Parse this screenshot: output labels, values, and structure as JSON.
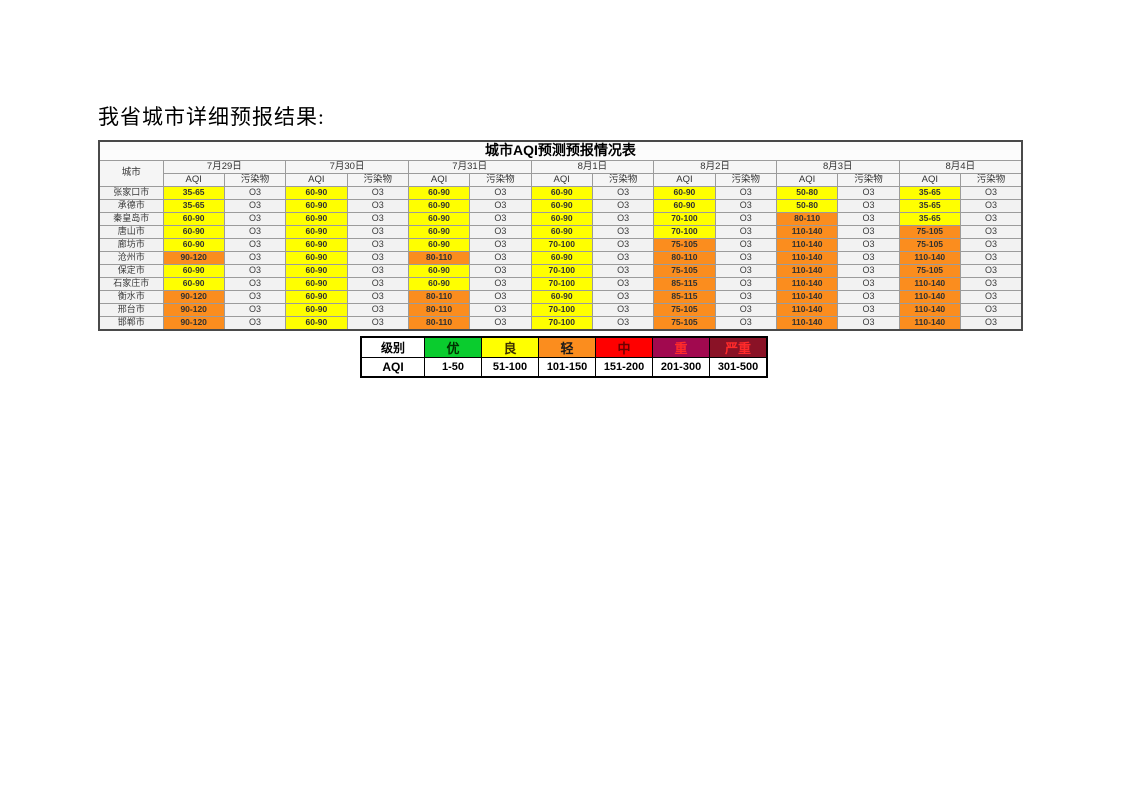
{
  "page": {
    "heading": "我省城市详细预报结果:"
  },
  "colors": {
    "yellow": "#ffff00",
    "orange": "#fb8d1e",
    "green": "#0acc2e",
    "red": "#ff0000",
    "purple": "#a1094f",
    "maroon": "#8a1226"
  },
  "table": {
    "title": "城市AQI预测预报情况表",
    "city_header": "城市",
    "aqi_header": "AQI",
    "pollutant_header": "污染物",
    "dates": [
      "7月29日",
      "7月30日",
      "7月31日",
      "8月1日",
      "8月2日",
      "8月3日",
      "8月4日"
    ],
    "rows": [
      {
        "city": "张家口市",
        "cells": [
          {
            "aqi": "35-65",
            "pollutant": "O3",
            "color": "yellow"
          },
          {
            "aqi": "60-90",
            "pollutant": "O3",
            "color": "yellow"
          },
          {
            "aqi": "60-90",
            "pollutant": "O3",
            "color": "yellow"
          },
          {
            "aqi": "60-90",
            "pollutant": "O3",
            "color": "yellow"
          },
          {
            "aqi": "60-90",
            "pollutant": "O3",
            "color": "yellow"
          },
          {
            "aqi": "50-80",
            "pollutant": "O3",
            "color": "yellow"
          },
          {
            "aqi": "35-65",
            "pollutant": "O3",
            "color": "yellow"
          }
        ]
      },
      {
        "city": "承德市",
        "cells": [
          {
            "aqi": "35-65",
            "pollutant": "O3",
            "color": "yellow"
          },
          {
            "aqi": "60-90",
            "pollutant": "O3",
            "color": "yellow"
          },
          {
            "aqi": "60-90",
            "pollutant": "O3",
            "color": "yellow"
          },
          {
            "aqi": "60-90",
            "pollutant": "O3",
            "color": "yellow"
          },
          {
            "aqi": "60-90",
            "pollutant": "O3",
            "color": "yellow"
          },
          {
            "aqi": "50-80",
            "pollutant": "O3",
            "color": "yellow"
          },
          {
            "aqi": "35-65",
            "pollutant": "O3",
            "color": "yellow"
          }
        ]
      },
      {
        "city": "秦皇岛市",
        "cells": [
          {
            "aqi": "60-90",
            "pollutant": "O3",
            "color": "yellow"
          },
          {
            "aqi": "60-90",
            "pollutant": "O3",
            "color": "yellow"
          },
          {
            "aqi": "60-90",
            "pollutant": "O3",
            "color": "yellow"
          },
          {
            "aqi": "60-90",
            "pollutant": "O3",
            "color": "yellow"
          },
          {
            "aqi": "70-100",
            "pollutant": "O3",
            "color": "yellow"
          },
          {
            "aqi": "80-110",
            "pollutant": "O3",
            "color": "orange"
          },
          {
            "aqi": "35-65",
            "pollutant": "O3",
            "color": "yellow"
          }
        ]
      },
      {
        "city": "唐山市",
        "cells": [
          {
            "aqi": "60-90",
            "pollutant": "O3",
            "color": "yellow"
          },
          {
            "aqi": "60-90",
            "pollutant": "O3",
            "color": "yellow"
          },
          {
            "aqi": "60-90",
            "pollutant": "O3",
            "color": "yellow"
          },
          {
            "aqi": "60-90",
            "pollutant": "O3",
            "color": "yellow"
          },
          {
            "aqi": "70-100",
            "pollutant": "O3",
            "color": "yellow"
          },
          {
            "aqi": "110-140",
            "pollutant": "O3",
            "color": "orange"
          },
          {
            "aqi": "75-105",
            "pollutant": "O3",
            "color": "orange"
          }
        ]
      },
      {
        "city": "廊坊市",
        "cells": [
          {
            "aqi": "60-90",
            "pollutant": "O3",
            "color": "yellow"
          },
          {
            "aqi": "60-90",
            "pollutant": "O3",
            "color": "yellow"
          },
          {
            "aqi": "60-90",
            "pollutant": "O3",
            "color": "yellow"
          },
          {
            "aqi": "70-100",
            "pollutant": "O3",
            "color": "yellow"
          },
          {
            "aqi": "75-105",
            "pollutant": "O3",
            "color": "orange"
          },
          {
            "aqi": "110-140",
            "pollutant": "O3",
            "color": "orange"
          },
          {
            "aqi": "75-105",
            "pollutant": "O3",
            "color": "orange"
          }
        ]
      },
      {
        "city": "沧州市",
        "cells": [
          {
            "aqi": "90-120",
            "pollutant": "O3",
            "color": "orange"
          },
          {
            "aqi": "60-90",
            "pollutant": "O3",
            "color": "yellow"
          },
          {
            "aqi": "80-110",
            "pollutant": "O3",
            "color": "orange"
          },
          {
            "aqi": "60-90",
            "pollutant": "O3",
            "color": "yellow"
          },
          {
            "aqi": "80-110",
            "pollutant": "O3",
            "color": "orange"
          },
          {
            "aqi": "110-140",
            "pollutant": "O3",
            "color": "orange"
          },
          {
            "aqi": "110-140",
            "pollutant": "O3",
            "color": "orange"
          }
        ]
      },
      {
        "city": "保定市",
        "cells": [
          {
            "aqi": "60-90",
            "pollutant": "O3",
            "color": "yellow"
          },
          {
            "aqi": "60-90",
            "pollutant": "O3",
            "color": "yellow"
          },
          {
            "aqi": "60-90",
            "pollutant": "O3",
            "color": "yellow"
          },
          {
            "aqi": "70-100",
            "pollutant": "O3",
            "color": "yellow"
          },
          {
            "aqi": "75-105",
            "pollutant": "O3",
            "color": "orange"
          },
          {
            "aqi": "110-140",
            "pollutant": "O3",
            "color": "orange"
          },
          {
            "aqi": "75-105",
            "pollutant": "O3",
            "color": "orange"
          }
        ]
      },
      {
        "city": "石家庄市",
        "cells": [
          {
            "aqi": "60-90",
            "pollutant": "O3",
            "color": "yellow"
          },
          {
            "aqi": "60-90",
            "pollutant": "O3",
            "color": "yellow"
          },
          {
            "aqi": "60-90",
            "pollutant": "O3",
            "color": "yellow"
          },
          {
            "aqi": "70-100",
            "pollutant": "O3",
            "color": "yellow"
          },
          {
            "aqi": "85-115",
            "pollutant": "O3",
            "color": "orange"
          },
          {
            "aqi": "110-140",
            "pollutant": "O3",
            "color": "orange"
          },
          {
            "aqi": "110-140",
            "pollutant": "O3",
            "color": "orange"
          }
        ]
      },
      {
        "city": "衡水市",
        "cells": [
          {
            "aqi": "90-120",
            "pollutant": "O3",
            "color": "orange"
          },
          {
            "aqi": "60-90",
            "pollutant": "O3",
            "color": "yellow"
          },
          {
            "aqi": "80-110",
            "pollutant": "O3",
            "color": "orange"
          },
          {
            "aqi": "60-90",
            "pollutant": "O3",
            "color": "yellow"
          },
          {
            "aqi": "85-115",
            "pollutant": "O3",
            "color": "orange"
          },
          {
            "aqi": "110-140",
            "pollutant": "O3",
            "color": "orange"
          },
          {
            "aqi": "110-140",
            "pollutant": "O3",
            "color": "orange"
          }
        ]
      },
      {
        "city": "邢台市",
        "cells": [
          {
            "aqi": "90-120",
            "pollutant": "O3",
            "color": "orange"
          },
          {
            "aqi": "60-90",
            "pollutant": "O3",
            "color": "yellow"
          },
          {
            "aqi": "80-110",
            "pollutant": "O3",
            "color": "orange"
          },
          {
            "aqi": "70-100",
            "pollutant": "O3",
            "color": "yellow"
          },
          {
            "aqi": "75-105",
            "pollutant": "O3",
            "color": "orange"
          },
          {
            "aqi": "110-140",
            "pollutant": "O3",
            "color": "orange"
          },
          {
            "aqi": "110-140",
            "pollutant": "O3",
            "color": "orange"
          }
        ]
      },
      {
        "city": "邯郸市",
        "cells": [
          {
            "aqi": "90-120",
            "pollutant": "O3",
            "color": "orange"
          },
          {
            "aqi": "60-90",
            "pollutant": "O3",
            "color": "yellow"
          },
          {
            "aqi": "80-110",
            "pollutant": "O3",
            "color": "orange"
          },
          {
            "aqi": "70-100",
            "pollutant": "O3",
            "color": "yellow"
          },
          {
            "aqi": "75-105",
            "pollutant": "O3",
            "color": "orange"
          },
          {
            "aqi": "110-140",
            "pollutant": "O3",
            "color": "orange"
          },
          {
            "aqi": "110-140",
            "pollutant": "O3",
            "color": "orange"
          }
        ]
      }
    ]
  },
  "legend": {
    "level_label": "级别",
    "aqi_label": "AQI",
    "levels": [
      {
        "name": "优",
        "range": "1-50",
        "bg": "green",
        "fg": "#003300"
      },
      {
        "name": "良",
        "range": "51-100",
        "bg": "yellow",
        "fg": "#3d3000"
      },
      {
        "name": "轻",
        "range": "101-150",
        "bg": "orange",
        "fg": "#1a1a1a"
      },
      {
        "name": "中",
        "range": "151-200",
        "bg": "red",
        "fg": "#6e0000"
      },
      {
        "name": "重",
        "range": "201-300",
        "bg": "purple",
        "fg": "#ff2a2a"
      },
      {
        "name": "严重",
        "range": "301-500",
        "bg": "maroon",
        "fg": "#ff2a2a"
      }
    ]
  }
}
